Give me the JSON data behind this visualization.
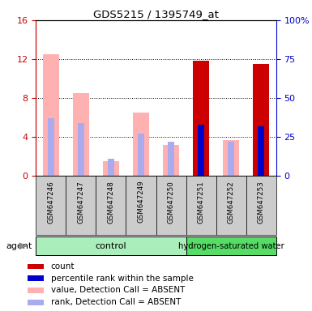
{
  "title": "GDS5215 / 1395749_at",
  "samples": [
    "GSM647246",
    "GSM647247",
    "GSM647248",
    "GSM647249",
    "GSM647250",
    "GSM647251",
    "GSM647252",
    "GSM647253"
  ],
  "n_control": 5,
  "n_treatment": 3,
  "value_absent": [
    12.5,
    8.5,
    1.5,
    6.5,
    3.2,
    0,
    3.7,
    0
  ],
  "rank_absent_pct": [
    37.0,
    34.0,
    11.0,
    27.0,
    22.0,
    0,
    22.0,
    0
  ],
  "value_present": [
    0,
    0,
    0,
    0,
    0,
    11.8,
    0,
    11.5
  ],
  "rank_present_pct": [
    0,
    0,
    0,
    0,
    0,
    33.0,
    0,
    32.0
  ],
  "ylim_left": [
    0,
    16
  ],
  "ylim_right": [
    0,
    100
  ],
  "yticks_left": [
    0,
    4,
    8,
    12,
    16
  ],
  "ytick_labels_left": [
    "0",
    "4",
    "8",
    "12",
    "16"
  ],
  "ytick_labels_right": [
    "0",
    "25",
    "50",
    "75",
    "100%"
  ],
  "yticks_right": [
    0,
    25,
    50,
    75,
    100
  ],
  "color_red": "#cc0000",
  "color_blue": "#0000cc",
  "color_pink": "#ffb0b0",
  "color_lightblue": "#aaaaee",
  "color_control_bg": "#aaeebb",
  "color_treatment_bg": "#55dd66",
  "color_sample_bg": "#cccccc",
  "bar_width": 0.55,
  "rank_bar_width": 0.2,
  "legend_items": [
    {
      "label": "count",
      "color": "#cc0000"
    },
    {
      "label": "percentile rank within the sample",
      "color": "#0000cc"
    },
    {
      "label": "value, Detection Call = ABSENT",
      "color": "#ffb0b0"
    },
    {
      "label": "rank, Detection Call = ABSENT",
      "color": "#aaaaee"
    }
  ],
  "agent_label": "agent",
  "control_label": "control",
  "treatment_label": "hydrogen-saturated water"
}
